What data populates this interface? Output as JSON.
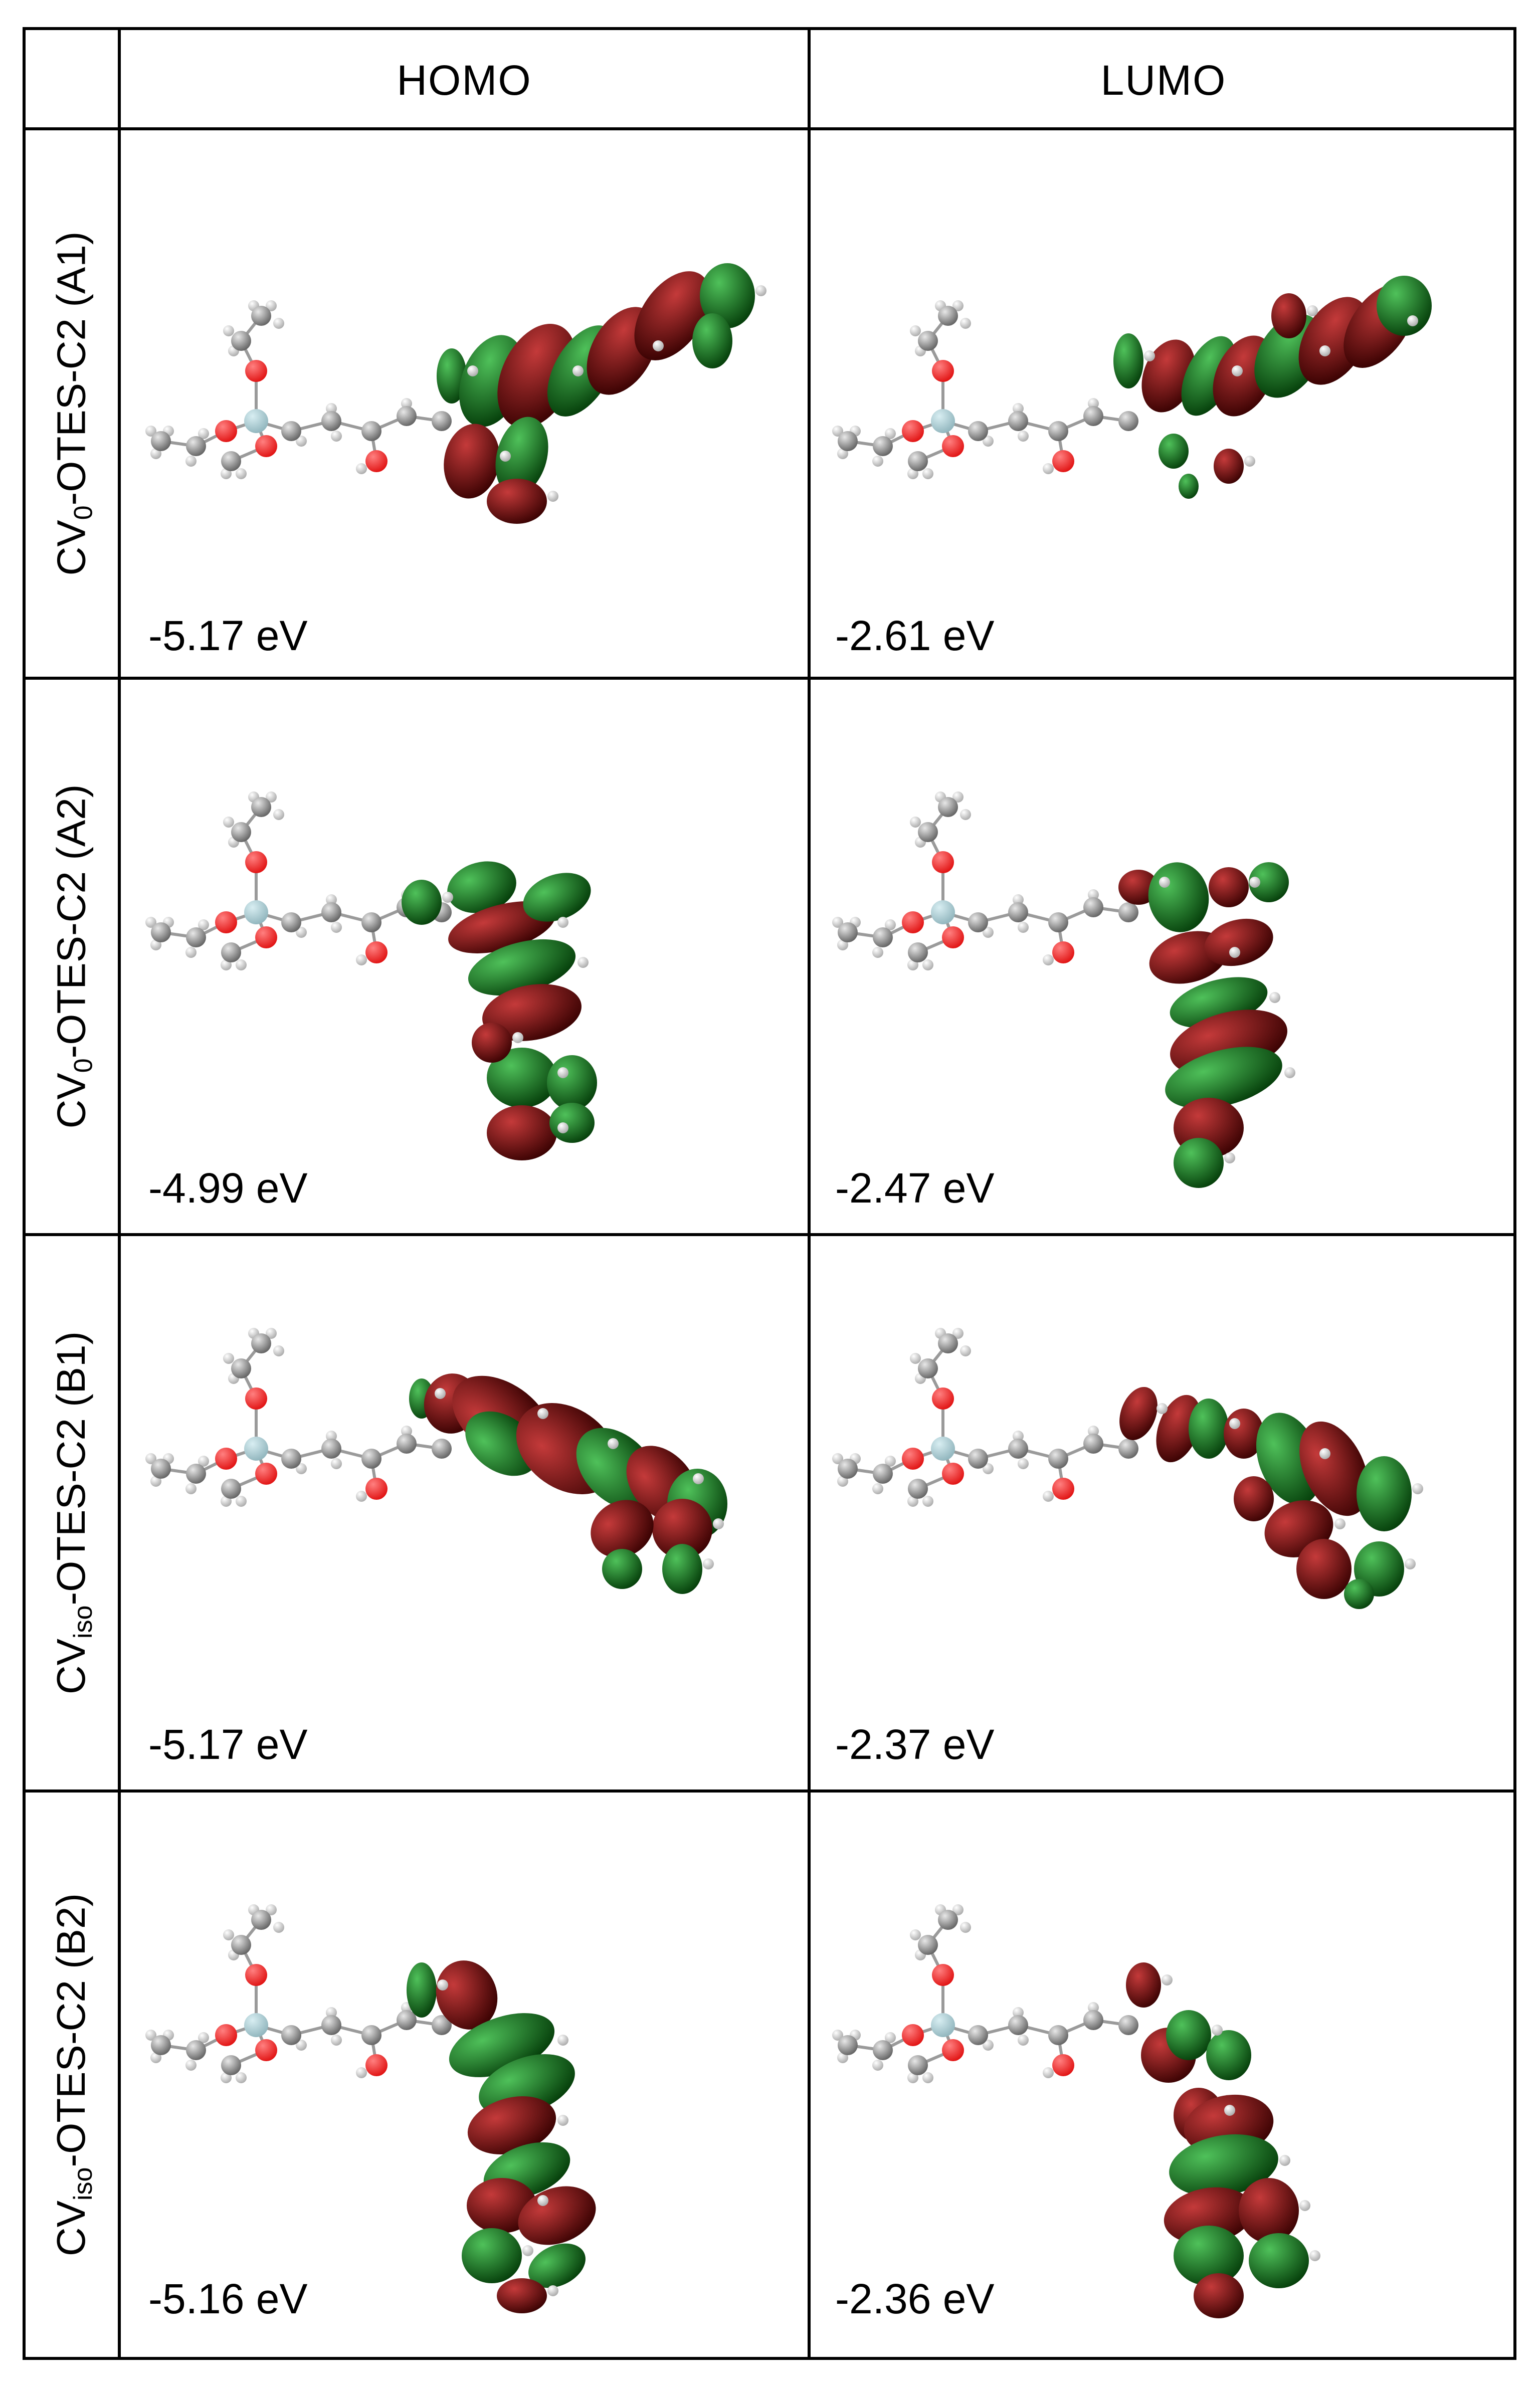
{
  "headers": {
    "col1": "HOMO",
    "col2": "LUMO"
  },
  "rows": [
    {
      "label_main": "CV",
      "label_sub": "0",
      "label_rest": "-OTES-C2 (A1)",
      "homo_energy": "-5.17 eV",
      "lumo_energy": "-2.61 eV"
    },
    {
      "label_main": "CV",
      "label_sub": "0",
      "label_rest": "-OTES-C2 (A2)",
      "homo_energy": "-4.99 eV",
      "lumo_energy": "-2.47 eV"
    },
    {
      "label_main": "CV",
      "label_sub": "iso",
      "label_rest": "-OTES-C2 (B1)",
      "homo_energy": "-5.17 eV",
      "lumo_energy": "-2.37 eV"
    },
    {
      "label_main": "CV",
      "label_sub": "iso",
      "label_rest": "-OTES-C2 (B2)",
      "homo_energy": "-5.16 eV",
      "lumo_energy": "-2.36 eV"
    }
  ],
  "colors": {
    "lobe_red": "#7a0a0a",
    "lobe_green": "#0e7a1a",
    "oxygen": "#e01010",
    "carbon": "#8c8c8c",
    "silicon": "#8fb4bc",
    "hydrogen": "#dcdcdc",
    "nitrogen": "#1a1a9a"
  }
}
